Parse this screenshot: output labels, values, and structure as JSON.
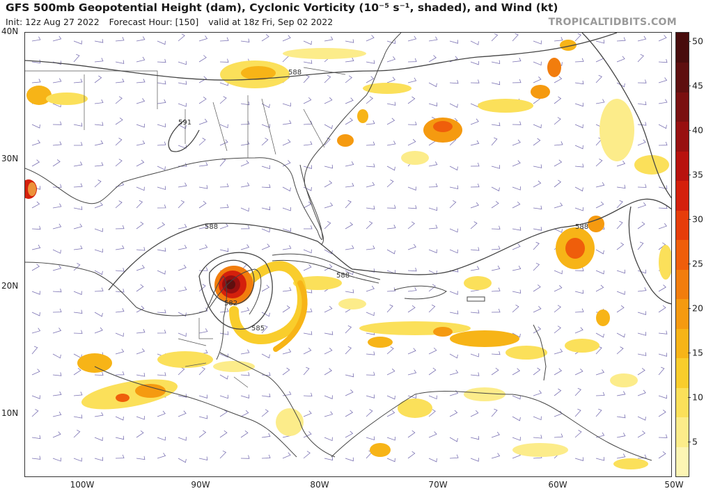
{
  "header": {
    "title": "GFS 500mb Geopotential Height (dam), Cyclonic Vorticity (10⁻⁵ s⁻¹, shaded), and Wind (kt)",
    "init": "Init: 12z Aug 27 2022",
    "forecast_hour": "Forecast Hour: [150]",
    "valid": "valid at 18z Fri, Sep 02 2022",
    "site": "TROPICALTIDBITS.COM"
  },
  "axes": {
    "lat_labels": [
      "40N",
      "30N",
      "20N",
      "10N"
    ],
    "lon_labels": [
      "100W",
      "90W",
      "80W",
      "70W",
      "60W",
      "50W"
    ]
  },
  "contours": {
    "labels": [
      "588",
      "591",
      "588",
      "588",
      "582",
      "585",
      "588"
    ]
  },
  "colorbar": {
    "labels": [
      "50",
      "45",
      "40",
      "35",
      "30",
      "25",
      "20",
      "15",
      "10",
      "5"
    ],
    "colors": [
      "#fdf5b4",
      "#fcec8a",
      "#fbe05a",
      "#f9cd2c",
      "#f7b417",
      "#f59a10",
      "#f27d0d",
      "#ef5e0b",
      "#e63d0a",
      "#d4200c",
      "#b8120e",
      "#981010",
      "#7a1010",
      "#5e0f0f",
      "#480c0c"
    ]
  },
  "colors": {
    "coast": "#444444",
    "contour": "#444444",
    "barb": "#7b72b3"
  }
}
